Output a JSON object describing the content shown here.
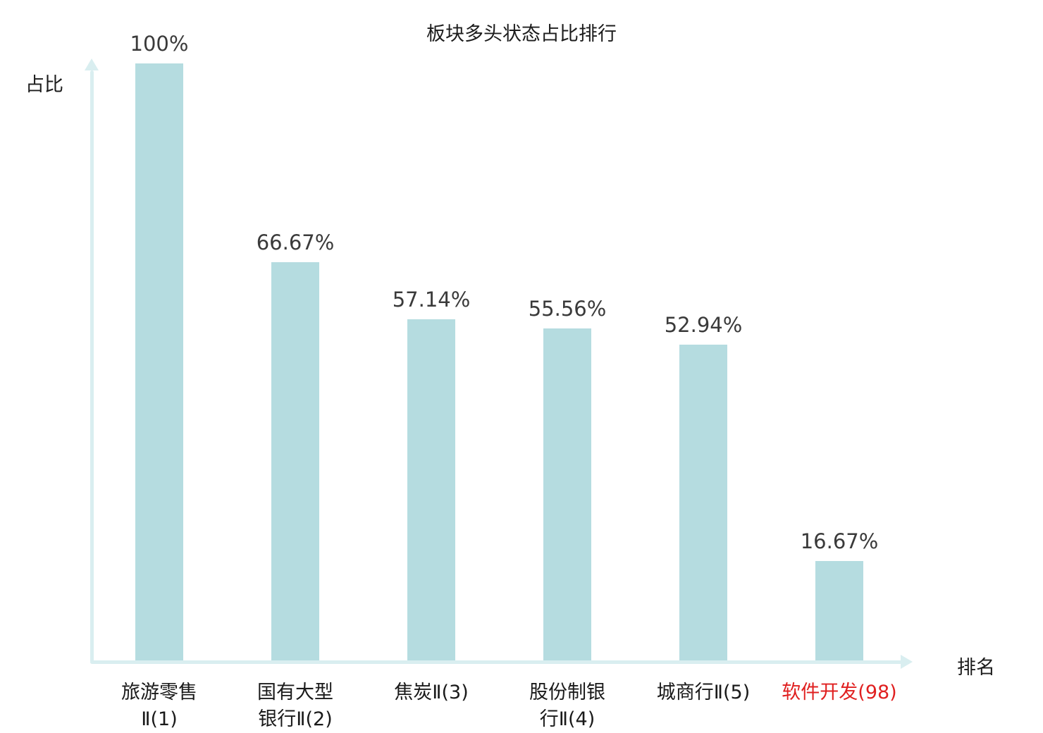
{
  "title": "板块多头状态占比排行",
  "ylabel": "占比",
  "xlabel": "排名",
  "chart_data": {
    "type": "bar",
    "categories": [
      "旅游零售\nⅡ(1)",
      "国有大型\n银行Ⅱ(2)",
      "焦炭Ⅱ(3)",
      "股份制银\n行Ⅱ(4)",
      "城商行Ⅱ(5)",
      "软件开发(98)"
    ],
    "values": [
      100,
      66.67,
      57.14,
      55.56,
      52.94,
      16.67
    ],
    "value_labels": [
      "100%",
      "66.67%",
      "57.14%",
      "55.56%",
      "52.94%",
      "16.67%"
    ],
    "highlight_index": 5,
    "bar_color": "#b5dce0",
    "axis_color": "#d9eef0",
    "label_color": "#1a1a1a",
    "highlight_label_color": "#e02020",
    "ylim": [
      0,
      100
    ],
    "grid": false,
    "legend": "none"
  }
}
